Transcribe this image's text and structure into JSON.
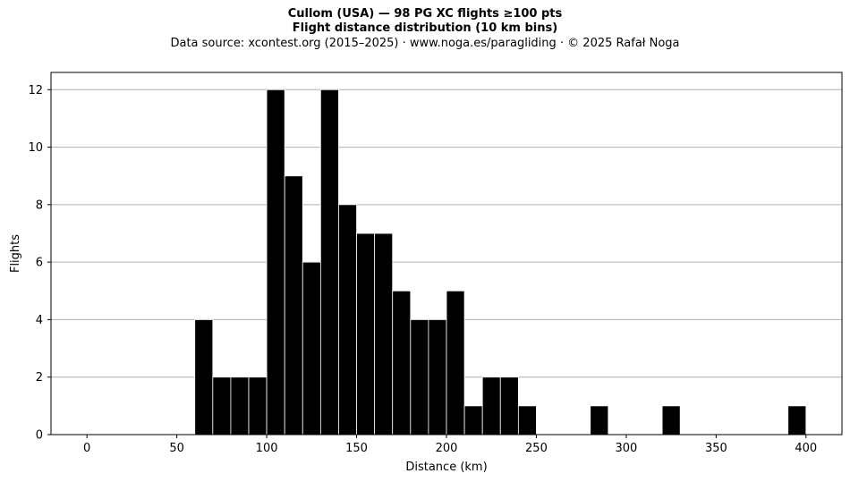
{
  "chart_data": {
    "type": "bar",
    "title": "Cullom (USA)  —  98 PG XC flights ≥100 pts",
    "subtitle": "Flight distance distribution (10 km bins)",
    "source": "Data source: xcontest.org (2015–2025)  ·  www.noga.es/paragliding  ·  © 2025 Rafał Noga",
    "xlabel": "Distance (km)",
    "ylabel": "Flights",
    "xlim": [
      -20,
      420
    ],
    "ylim": [
      0,
      12.6
    ],
    "xticks": [
      0,
      50,
      100,
      150,
      200,
      250,
      300,
      350,
      400
    ],
    "yticks": [
      0,
      2,
      4,
      6,
      8,
      10,
      12
    ],
    "grid": "horizontal",
    "bar_color": "#000000",
    "edge_color": "#ffffff",
    "grid_color": "#b0b0b0",
    "bins": [
      {
        "x0": 60,
        "x1": 70,
        "count": 4
      },
      {
        "x0": 70,
        "x1": 80,
        "count": 2
      },
      {
        "x0": 80,
        "x1": 90,
        "count": 2
      },
      {
        "x0": 90,
        "x1": 100,
        "count": 2
      },
      {
        "x0": 100,
        "x1": 110,
        "count": 12
      },
      {
        "x0": 110,
        "x1": 120,
        "count": 9
      },
      {
        "x0": 120,
        "x1": 130,
        "count": 6
      },
      {
        "x0": 130,
        "x1": 140,
        "count": 12
      },
      {
        "x0": 140,
        "x1": 150,
        "count": 8
      },
      {
        "x0": 150,
        "x1": 160,
        "count": 7
      },
      {
        "x0": 160,
        "x1": 170,
        "count": 7
      },
      {
        "x0": 170,
        "x1": 180,
        "count": 5
      },
      {
        "x0": 180,
        "x1": 190,
        "count": 4
      },
      {
        "x0": 190,
        "x1": 200,
        "count": 4
      },
      {
        "x0": 200,
        "x1": 210,
        "count": 5
      },
      {
        "x0": 210,
        "x1": 220,
        "count": 1
      },
      {
        "x0": 220,
        "x1": 230,
        "count": 2
      },
      {
        "x0": 230,
        "x1": 240,
        "count": 2
      },
      {
        "x0": 240,
        "x1": 250,
        "count": 1
      },
      {
        "x0": 280,
        "x1": 290,
        "count": 1
      },
      {
        "x0": 320,
        "x1": 330,
        "count": 1
      },
      {
        "x0": 390,
        "x1": 400,
        "count": 1
      }
    ]
  }
}
